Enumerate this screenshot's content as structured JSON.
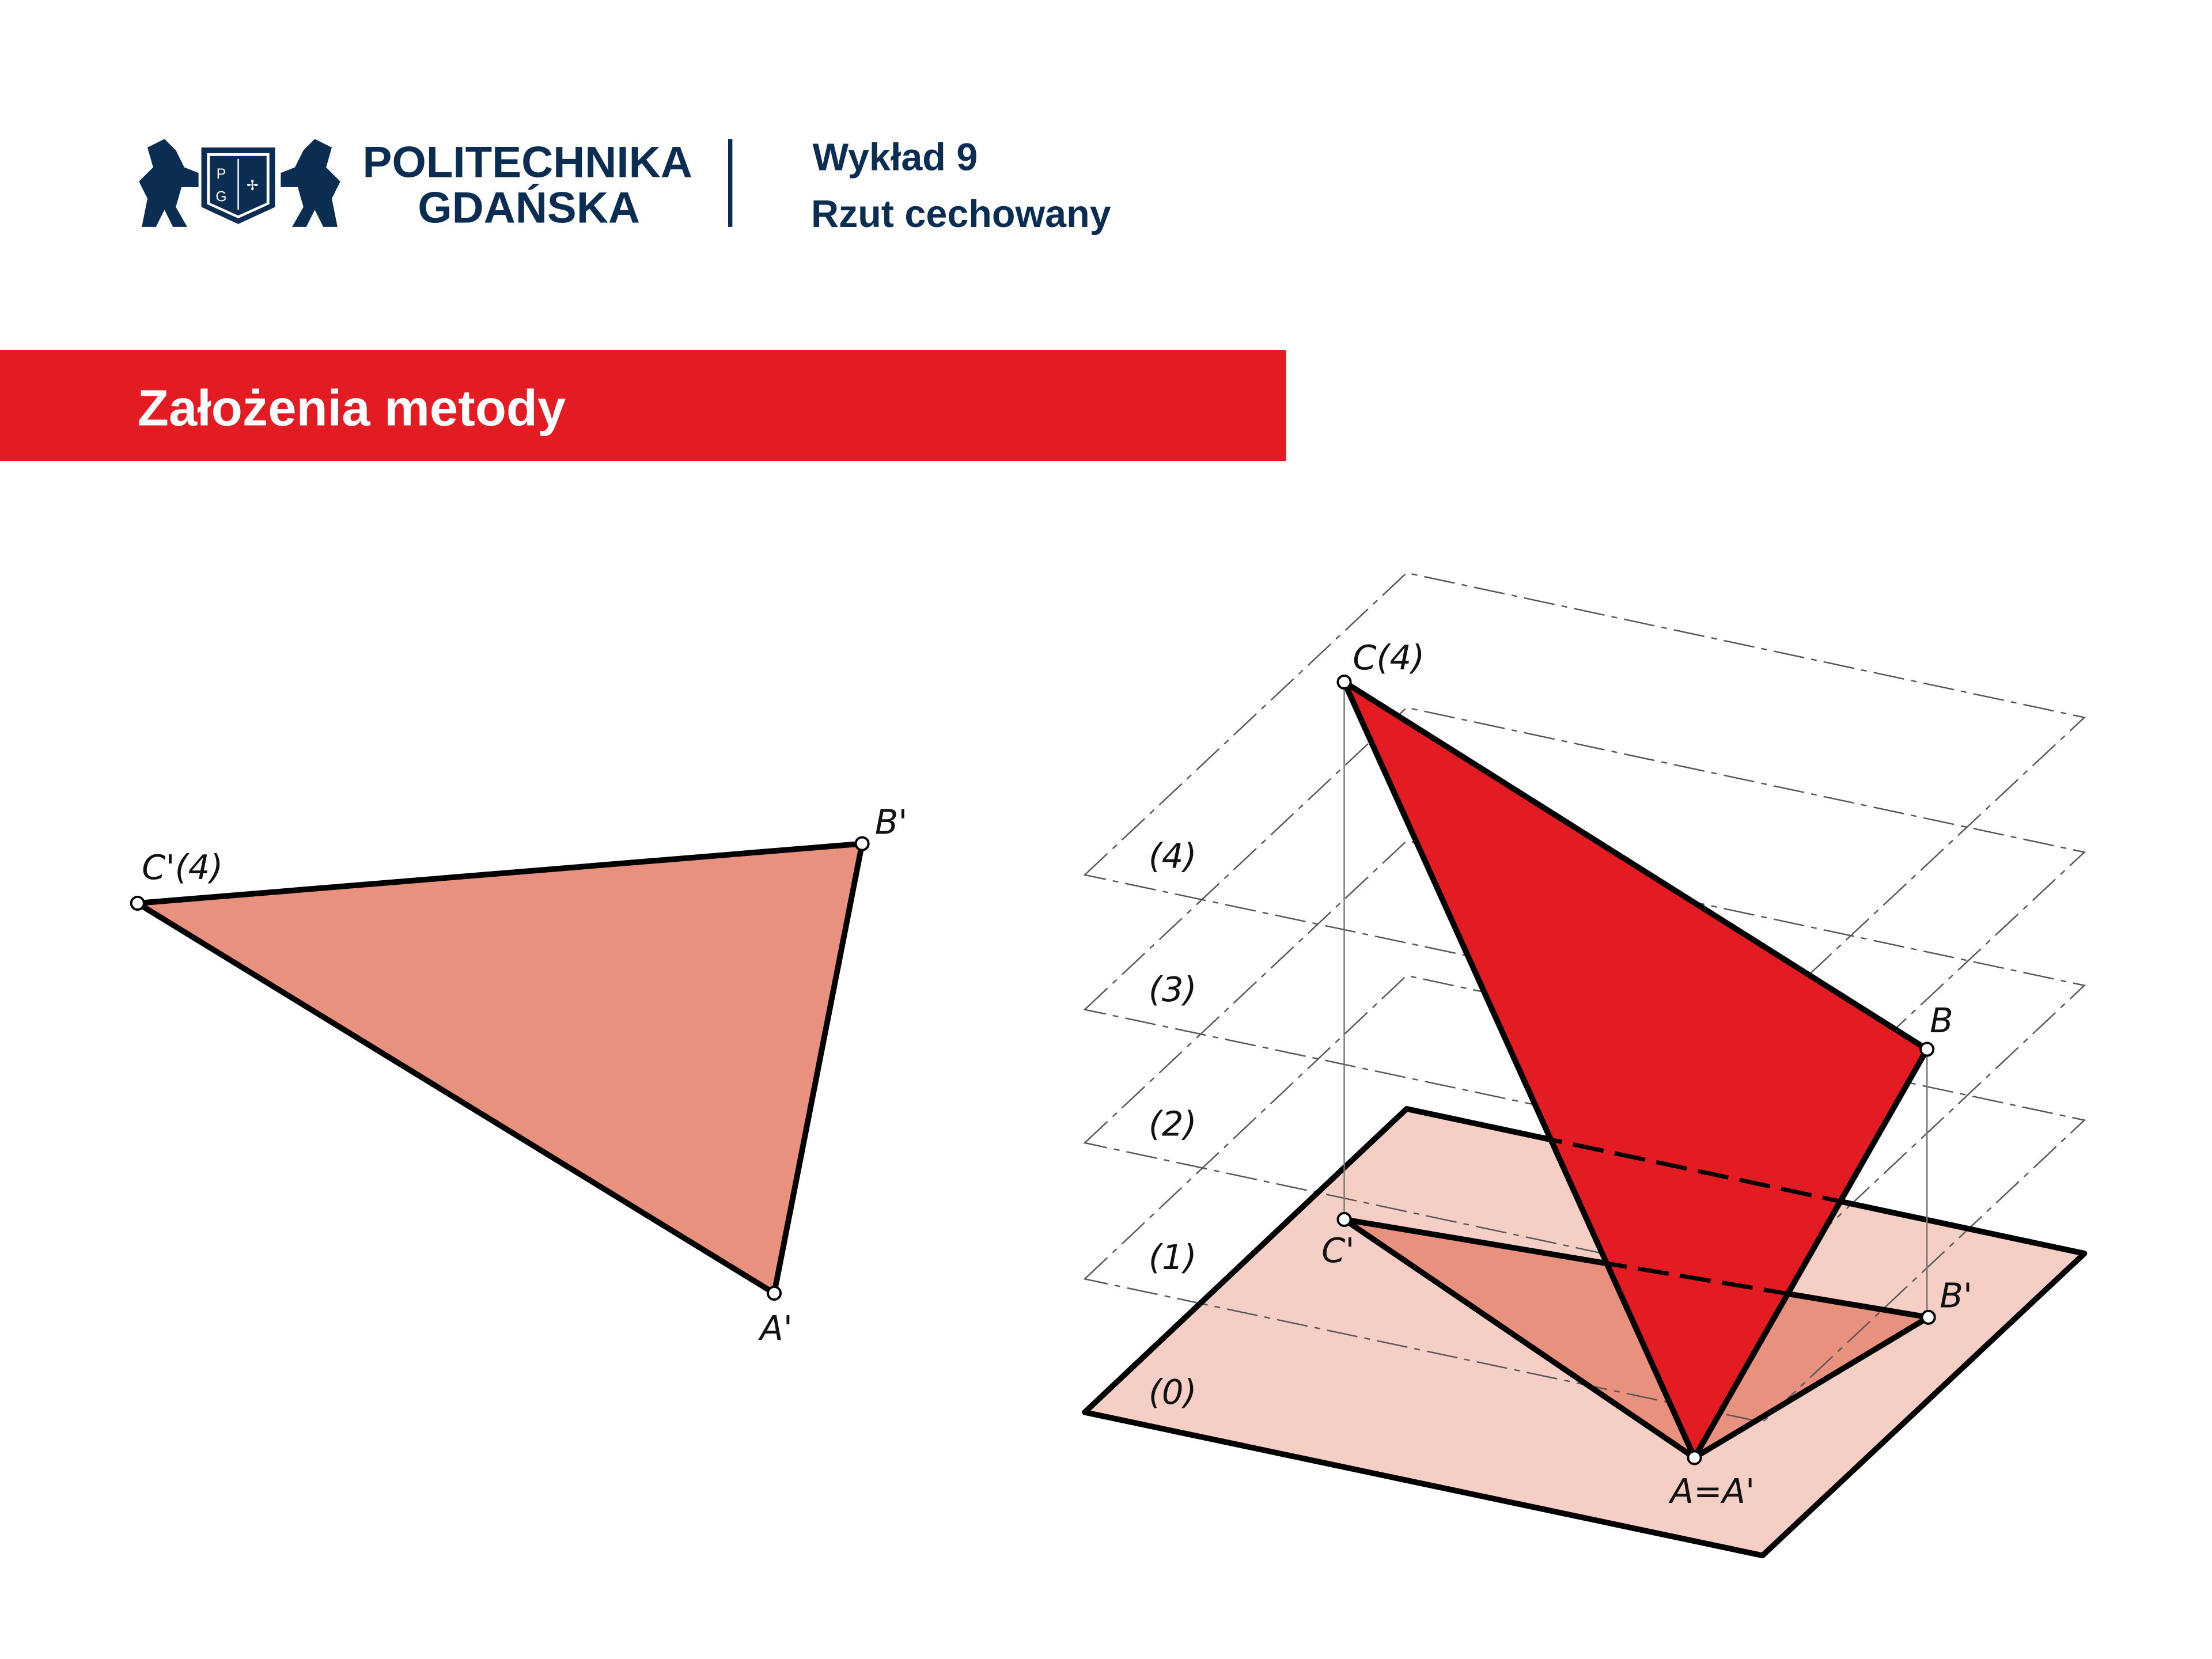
{
  "header": {
    "logo_text": [
      "POLITECHNIKA",
      "GDAŃSKA"
    ],
    "logo_shield_letters": [
      "P",
      "G"
    ],
    "lecture": "Wykład 9",
    "subject": "Rzut cechowany"
  },
  "section_title": "Założenia metody",
  "colors": {
    "brand_navy": "#0b2d52",
    "accent_red": "#e31b23",
    "projection_fill": "#e8917f",
    "plane_fill": "#f5cfc6"
  },
  "left_figure": {
    "labels": {
      "c": "C'(4)",
      "b": "B'",
      "a": "A'"
    }
  },
  "right_figure": {
    "levels": [
      "(0)",
      "(1)",
      "(2)",
      "(3)",
      "(4)"
    ],
    "labels": {
      "c": "C(4)",
      "b": "B",
      "c_proj": "C'",
      "b_proj": "B'",
      "a": "A=A'"
    }
  }
}
